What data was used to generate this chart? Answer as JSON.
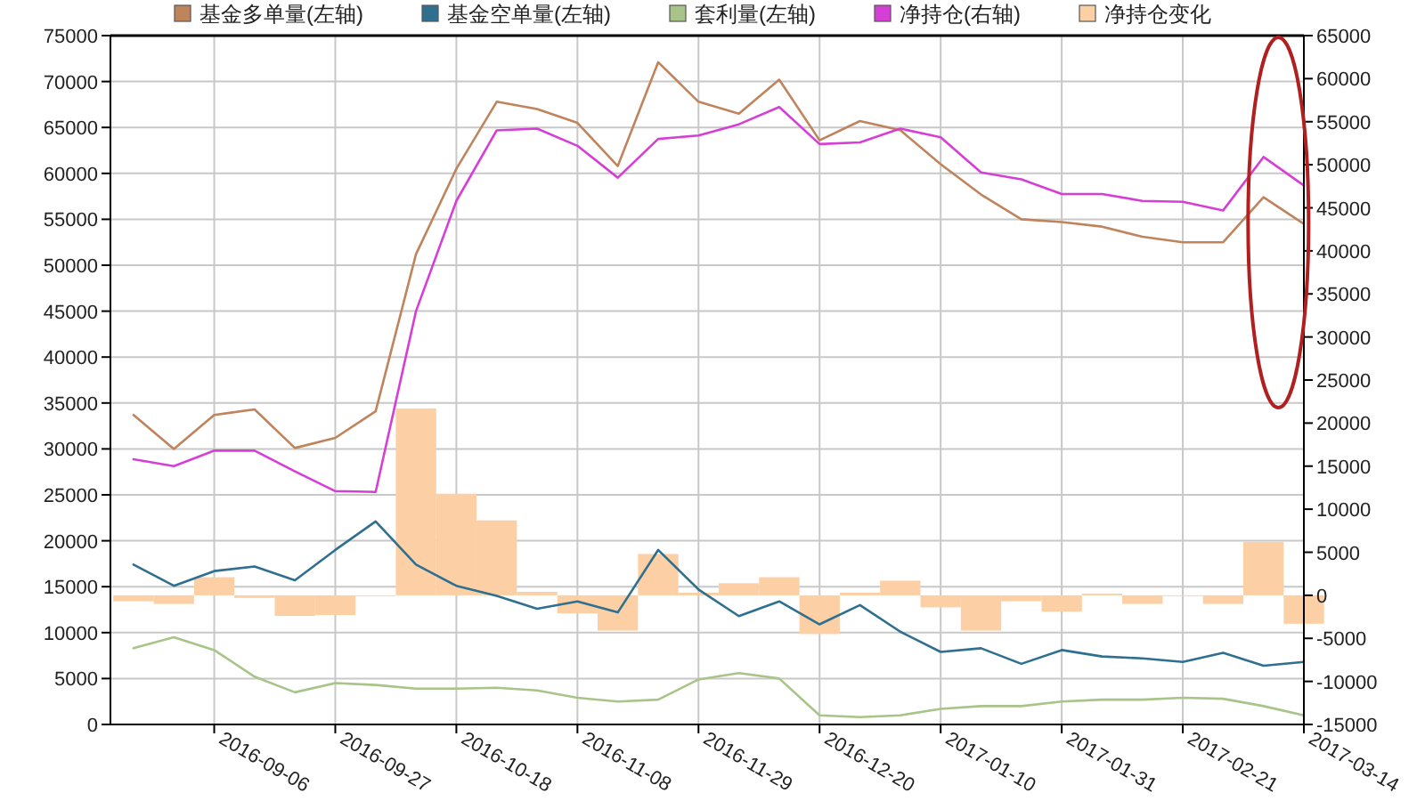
{
  "chart_data": {
    "type": "line",
    "legend": "top",
    "grid": true,
    "x": [
      "2016-08-23",
      "2016-08-30",
      "2016-09-06",
      "2016-09-13",
      "2016-09-20",
      "2016-09-27",
      "2016-10-04",
      "2016-10-11",
      "2016-10-18",
      "2016-10-25",
      "2016-11-01",
      "2016-11-08",
      "2016-11-15",
      "2016-11-22",
      "2016-11-29",
      "2016-12-06",
      "2016-12-13",
      "2016-12-20",
      "2016-12-27",
      "2017-01-03",
      "2017-01-10",
      "2017-01-17",
      "2017-01-24",
      "2017-01-31",
      "2017-02-07",
      "2017-02-14",
      "2017-02-21",
      "2017-02-28",
      "2017-03-07",
      "2017-03-14"
    ],
    "xlim": [
      "2016-08-19",
      "2017-03-14"
    ],
    "xticks": [
      "2016-09-06",
      "2016-09-27",
      "2016-10-18",
      "2016-11-08",
      "2016-11-29",
      "2016-12-20",
      "2017-01-10",
      "2017-01-31",
      "2017-02-21",
      "2017-03-14"
    ],
    "ylim": [
      0,
      75000
    ],
    "yticks": [
      0,
      5000,
      10000,
      15000,
      20000,
      25000,
      30000,
      35000,
      40000,
      45000,
      50000,
      55000,
      60000,
      65000,
      70000,
      75000
    ],
    "y2lim": [
      -15000,
      65000
    ],
    "y2ticks": [
      -15000,
      -10000,
      -5000,
      0,
      5000,
      10000,
      15000,
      20000,
      25000,
      30000,
      35000,
      40000,
      45000,
      50000,
      55000,
      60000,
      65000
    ],
    "series": [
      {
        "name": "基金多单量(左轴)",
        "color": "#c0845c",
        "values": [
          33700,
          30000,
          33700,
          34300,
          30100,
          31200,
          34100,
          51200,
          60500,
          67800,
          67000,
          65500,
          60800,
          72100,
          67800,
          66500,
          70200,
          63600,
          65700,
          64700,
          61000,
          57700,
          55000,
          54700,
          54200,
          53100,
          52500,
          52500,
          57400,
          54500
        ]
      },
      {
        "name": "基金空单量(左轴)",
        "color": "#2f6f8f",
        "values": [
          17400,
          15100,
          16700,
          17200,
          15700,
          19000,
          22100,
          17400,
          15100,
          14000,
          12600,
          13400,
          12200,
          19000,
          14700,
          11800,
          13400,
          10900,
          13000,
          10100,
          7900,
          8300,
          6600,
          8100,
          7400,
          7200,
          6800,
          7800,
          6400,
          6800
        ]
      },
      {
        "name": "套利量(左轴)",
        "color": "#a8c488",
        "values": [
          8300,
          9500,
          8100,
          5200,
          3500,
          4500,
          4300,
          3900,
          3900,
          4000,
          3700,
          2900,
          2500,
          2700,
          4900,
          5600,
          5000,
          1000,
          800,
          1000,
          1700,
          2000,
          2000,
          2500,
          2700,
          2700,
          2900,
          2800,
          2000,
          1000
        ]
      },
      {
        "name": "净持仓(右轴)",
        "color": "#d63fd6",
        "axis": "y2",
        "values": [
          15800,
          15000,
          16800,
          16800,
          14400,
          12100,
          12000,
          33000,
          45800,
          54000,
          54200,
          52200,
          48500,
          53000,
          53400,
          54700,
          56700,
          52400,
          52600,
          54200,
          53200,
          49100,
          48300,
          46600,
          46600,
          45800,
          45700,
          44700,
          50900,
          47600
        ]
      },
      {
        "name": "净持仓变化",
        "color": "#fcd0a4",
        "type": "bar",
        "axis": "y2",
        "values": [
          -700,
          -1000,
          2100,
          -300,
          -2400,
          -2300,
          -100,
          21700,
          11800,
          8700,
          400,
          -2100,
          -4100,
          4800,
          300,
          1400,
          2100,
          -4500,
          300,
          1700,
          -1400,
          -4100,
          -700,
          -1900,
          200,
          -1000,
          -100,
          -1000,
          6200,
          -3300
        ]
      }
    ]
  }
}
